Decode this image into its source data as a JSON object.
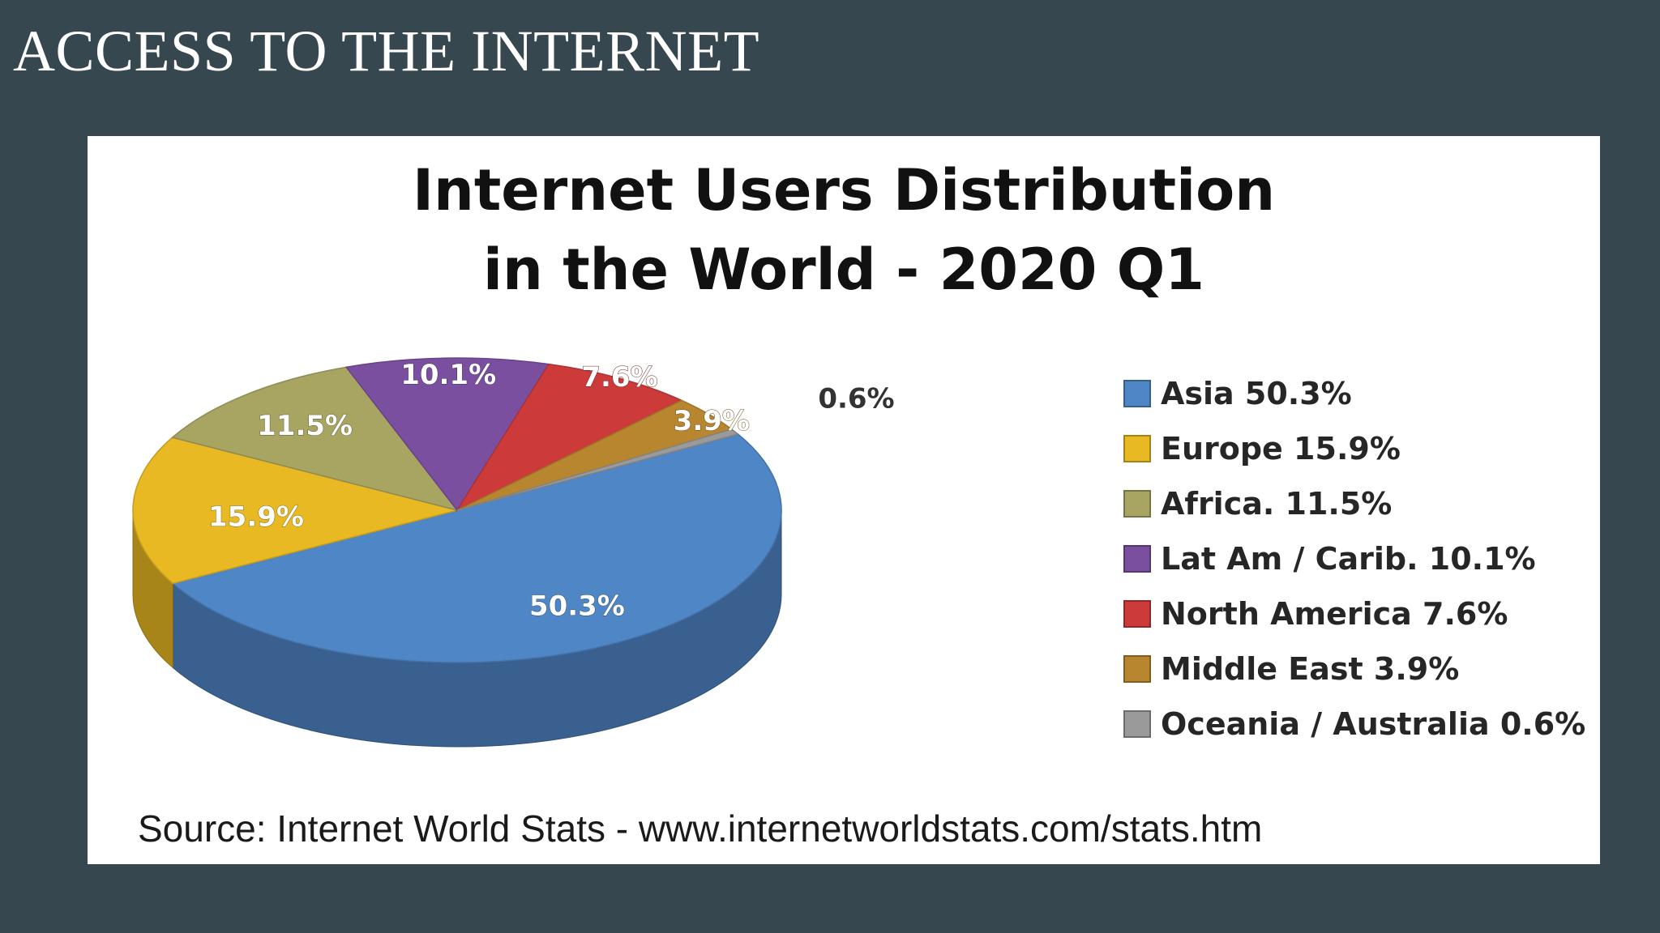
{
  "slide": {
    "title": "ACCESS TO THE INTERNET"
  },
  "chart_data": {
    "type": "pie",
    "title": "Internet Users Distribution in the World - 2020 Q1",
    "title_lines": [
      "Internet Users Distribution",
      "in the World - 2020 Q1"
    ],
    "slices": [
      {
        "name": "Asia",
        "value": 50.3,
        "label": "50.3%",
        "legend": "Asia  50.3%",
        "color": "#4f86c6"
      },
      {
        "name": "Europe",
        "value": 15.9,
        "label": "15.9%",
        "legend": "Europe  15.9%",
        "color": "#e8b923"
      },
      {
        "name": "Africa.",
        "value": 11.5,
        "label": "11.5%",
        "legend": "Africa.  11.5%",
        "color": "#a8a562"
      },
      {
        "name": "Lat Am / Carib.",
        "value": 10.1,
        "label": "10.1%",
        "legend": "Lat Am / Carib.  10.1%",
        "color": "#7a4fa0"
      },
      {
        "name": "North America",
        "value": 7.6,
        "label": "7.6%",
        "legend": "North America  7.6%",
        "color": "#cc3a3a"
      },
      {
        "name": "Middle East",
        "value": 3.9,
        "label": "3.9%",
        "legend": "Middle East  3.9%",
        "color": "#b8862e"
      },
      {
        "name": "Oceania / Australia",
        "value": 0.6,
        "label": "0.6%",
        "legend": "Oceania / Australia  0.6%",
        "color": "#9a9a9a"
      }
    ],
    "legend_position": "right",
    "style": "3d-pie"
  },
  "source": "Source: Internet World Stats -  www.internetworldstats.com/stats.htm"
}
